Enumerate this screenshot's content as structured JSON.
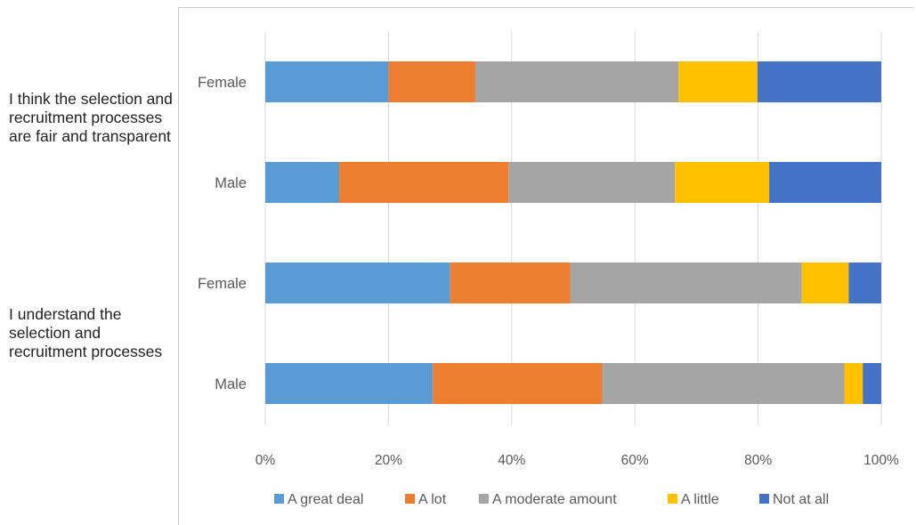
{
  "questions": [
    "I think the selection and recruitment processes are fair and transparent",
    "I understand the selection and recruitment processes"
  ],
  "chart_data": {
    "type": "bar",
    "orientation": "horizontal",
    "stacked": "percent",
    "groups": [
      "I think the selection and recruitment processes are fair and transparent",
      "I understand the selection and recruitment processes"
    ],
    "categories": [
      "Female",
      "Male",
      "Female",
      "Male"
    ],
    "series": [
      {
        "name": "A great deal",
        "color": "#5b9bd5",
        "values": [
          20,
          12,
          30,
          27.2
        ]
      },
      {
        "name": "A lot",
        "color": "#ed7d31",
        "values": [
          14.1,
          27.5,
          19.5,
          27.5
        ]
      },
      {
        "name": "A moderate amount",
        "color": "#a5a5a5",
        "values": [
          33,
          27,
          37.6,
          39.3
        ]
      },
      {
        "name": "A little",
        "color": "#ffc000",
        "values": [
          12.8,
          15.3,
          7.6,
          3
        ]
      },
      {
        "name": "Not at all",
        "color": "#4472c4",
        "values": [
          20.1,
          18.2,
          5.3,
          3
        ]
      }
    ],
    "xlim": [
      0,
      100
    ],
    "xticks": [
      "0%",
      "20%",
      "40%",
      "60%",
      "80%",
      "100%"
    ],
    "grid": true,
    "legend_position": "bottom",
    "title": "",
    "xlabel": "",
    "ylabel": ""
  }
}
